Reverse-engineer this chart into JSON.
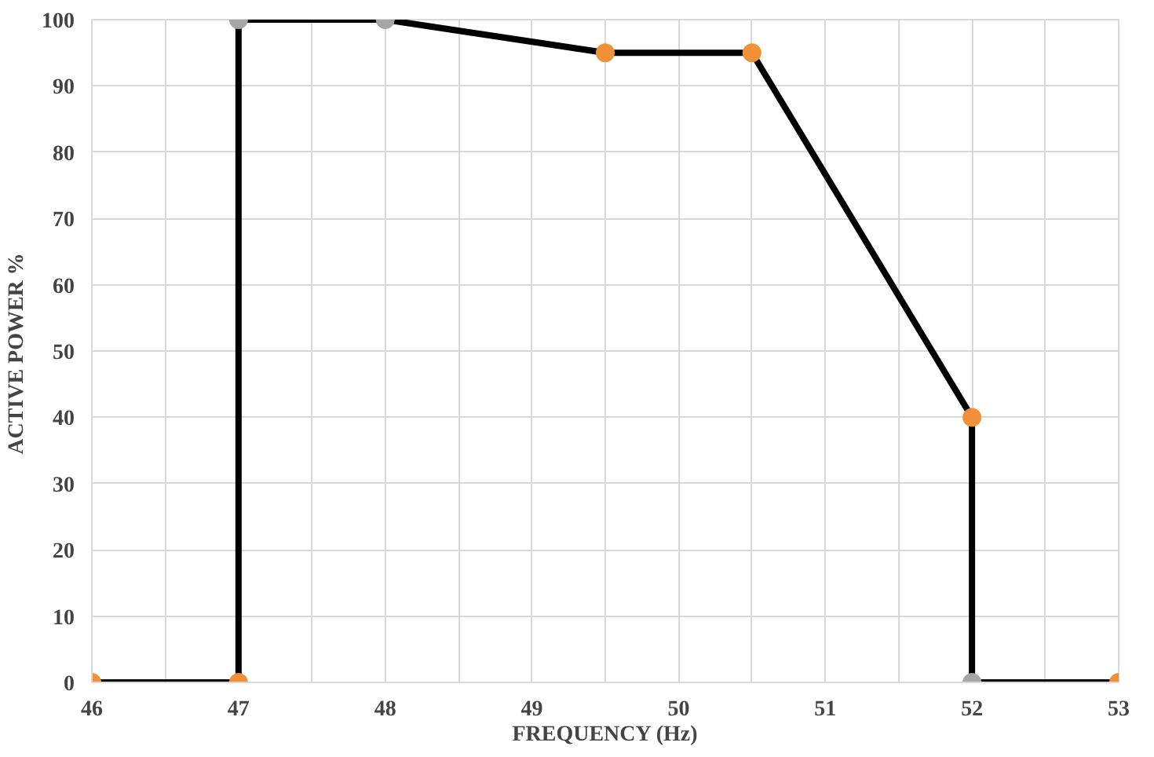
{
  "chart_data": {
    "type": "line",
    "xlabel": "FREQUENCY (Hz)",
    "ylabel": "ACTIVE POWER  %",
    "x": [
      46,
      47,
      47,
      48,
      49.5,
      50.5,
      52,
      52,
      53
    ],
    "series": [
      {
        "color": "#000000",
        "values": [
          0,
          0,
          100,
          100,
          95,
          95,
          40,
          0,
          0
        ],
        "colors": [
          "#f0913a",
          "#f0913a",
          "#a6a6a6",
          "#a6a6a6",
          "#f0913a",
          "#f0913a",
          "#f0913a",
          "#a6a6a6",
          "#f0913a"
        ]
      }
    ],
    "xlim": [
      46,
      53
    ],
    "ylim": [
      0,
      100
    ],
    "xticks": [
      46,
      {
        "value": 46.5,
        "label": null
      },
      47,
      {
        "value": 47.5,
        "label": null
      },
      48,
      {
        "value": 48.5,
        "label": null
      },
      49,
      {
        "value": 49.5,
        "label": null
      },
      50,
      {
        "value": 50.5,
        "label": null
      },
      51,
      {
        "value": 51.5,
        "label": null
      },
      52,
      {
        "value": 52.5,
        "label": null
      },
      53
    ],
    "yticks": [
      0,
      10,
      20,
      30,
      40,
      50,
      60,
      70,
      80,
      90,
      100
    ],
    "grid": true,
    "marker": "circle",
    "line_style": "solid"
  }
}
